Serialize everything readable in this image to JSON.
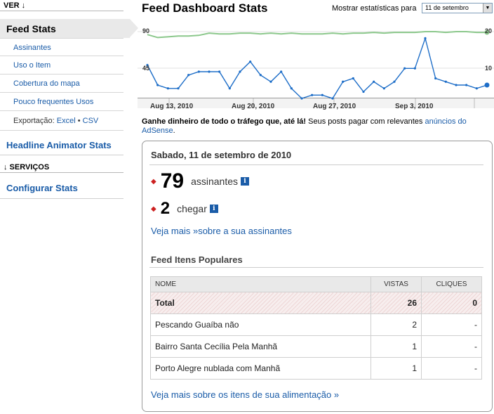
{
  "sidebar": {
    "ver_header": "VER ↓",
    "feed_stats": "Feed Stats",
    "sub_items": [
      "Assinantes",
      "Uso o Item",
      "Cobertura do mapa",
      "Pouco frequentes Usos"
    ],
    "export_label": "Exportação:",
    "export_excel": "Excel",
    "export_sep": "•",
    "export_csv": "CSV",
    "headline": "Headline Animator Stats",
    "services_header": "↓ SERVIÇOS",
    "configure": "Configurar Stats"
  },
  "header": {
    "title": "Feed Dashboard Stats",
    "stats_for_label": "Mostrar estatísticas para",
    "date_selected": "11 de setembro"
  },
  "chart_data": {
    "type": "line",
    "x_tick_labels": [
      "Aug 13, 2010",
      "Aug 20, 2010",
      "Aug 27, 2010",
      "Sep 3, 2010"
    ],
    "left_axis_ticks": [
      "90",
      "45"
    ],
    "right_axis_ticks": [
      "20",
      "10"
    ],
    "series": [
      {
        "axis": "left",
        "color": "#8cc88c",
        "values": [
          86,
          82,
          83,
          84,
          84,
          85,
          88,
          87,
          87,
          88,
          88,
          87,
          88,
          87,
          88,
          87,
          87,
          87,
          88,
          87,
          88,
          88,
          89,
          88,
          89,
          89,
          89,
          90,
          90,
          89,
          90,
          90,
          89,
          89
        ]
      },
      {
        "axis": "right",
        "color": "#1e6ec8",
        "values": [
          10,
          4,
          3,
          3,
          7,
          8,
          8,
          8,
          3,
          8,
          11,
          7,
          5,
          8,
          3,
          0,
          1,
          1,
          0,
          5,
          6,
          2,
          5,
          3,
          5,
          9,
          9,
          18,
          6,
          5,
          4,
          4,
          3,
          4
        ]
      }
    ]
  },
  "adsense": {
    "bold": "Ganhe dinheiro de todo o tráfego que, até lá!",
    "rest": " Seus posts pagar com relevantes ",
    "link": "anúncios do AdSense",
    "end": "."
  },
  "summary": {
    "date": "Sabado, 11 de setembro de 2010",
    "subscribers_count": "79",
    "subscribers_label": "assinantes",
    "reach_count": "2",
    "reach_label": "chegar",
    "more_subscribers": "Veja mais »sobre a sua assinantes",
    "popular_title": "Feed Itens Populares",
    "table_headers": [
      "NOME",
      "VISTAS",
      "CLIQUES"
    ],
    "total_row": [
      "Total",
      "26",
      "0"
    ],
    "rows": [
      [
        "Pescando Guaíba não",
        "2",
        "-"
      ],
      [
        "Bairro Santa Cecília Pela Manhã",
        "1",
        "-"
      ],
      [
        "Porto Alegre nublada com Manhã",
        "1",
        "-"
      ]
    ],
    "more_items": "Veja mais sobre os itens de sua alimentação »",
    "info_icon": "i"
  }
}
